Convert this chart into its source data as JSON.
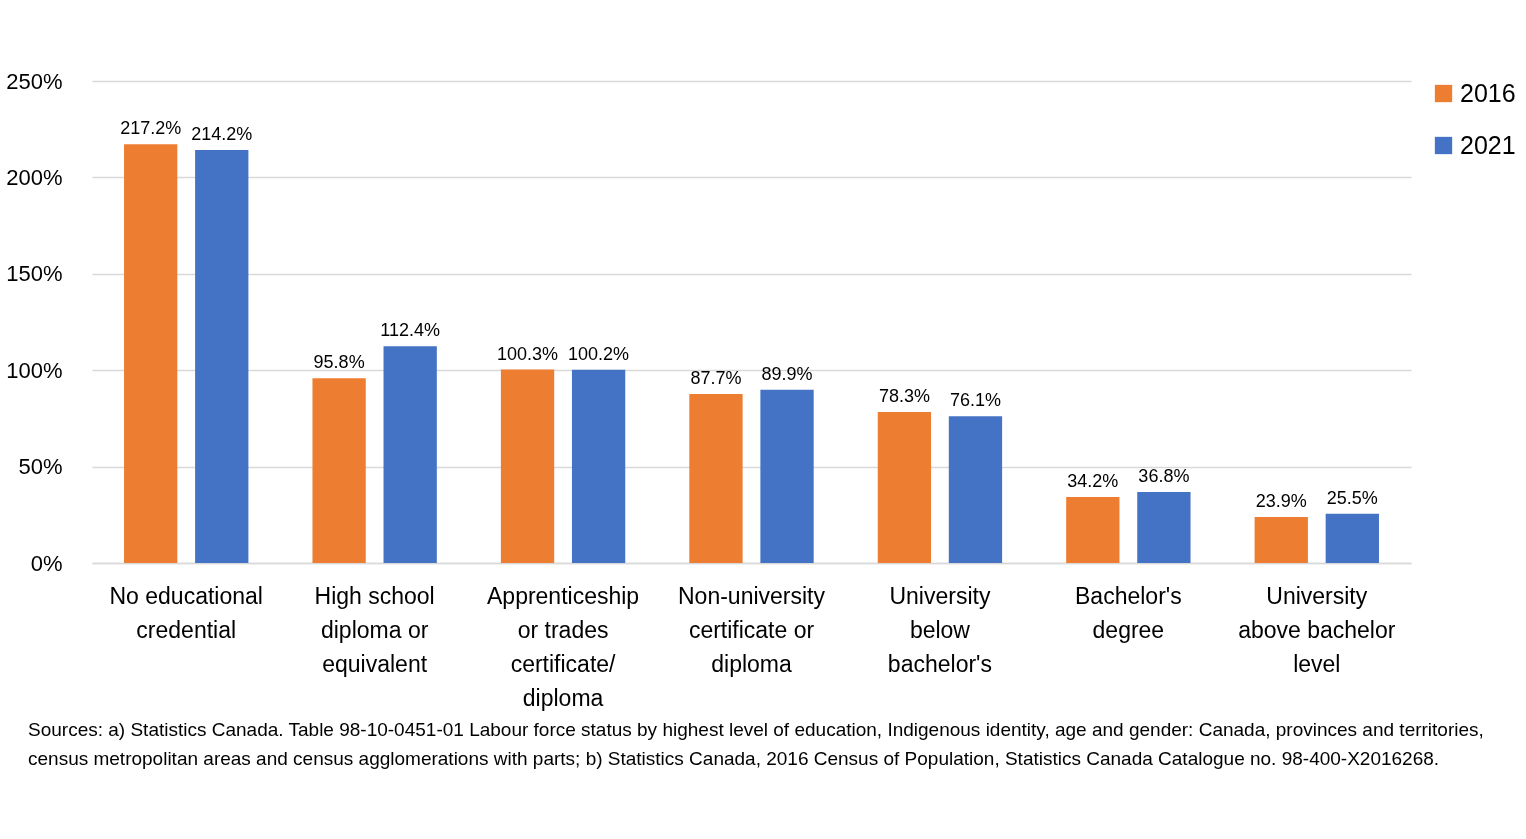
{
  "chart_data": {
    "type": "bar",
    "categories": [
      "No educational credential",
      "High school diploma or equivalent",
      "Apprenticeship or trades certificate/ diploma",
      "Non-university certificate or diploma",
      "University below bachelor's",
      "Bachelor's degree",
      "University above bachelor level"
    ],
    "series": [
      {
        "name": "2016",
        "color": "#ed7d31",
        "values": [
          217.2,
          95.8,
          100.3,
          87.7,
          78.3,
          34.2,
          23.9
        ],
        "value_labels": [
          "217.2%",
          "95.8%",
          "100.3%",
          "87.7%",
          "78.3%",
          "34.2%",
          "23.9%"
        ]
      },
      {
        "name": "2021",
        "color": "#4472c4",
        "values": [
          214.2,
          112.4,
          100.2,
          89.9,
          76.1,
          36.8,
          25.5
        ],
        "value_labels": [
          "214.2%",
          "112.4%",
          "100.2%",
          "89.9%",
          "76.1%",
          "36.8%",
          "25.5%"
        ]
      }
    ],
    "ylim": [
      0,
      250
    ],
    "yticks": [
      {
        "value": 0,
        "label": "0%"
      },
      {
        "value": 50,
        "label": "50%"
      },
      {
        "value": 100,
        "label": "100%"
      },
      {
        "value": 150,
        "label": "150%"
      },
      {
        "value": 200,
        "label": "200%"
      },
      {
        "value": 250,
        "label": "250%"
      }
    ],
    "grid": "y",
    "legend": "right",
    "annotations": [
      "Sources: a) Statistics Canada. Table 98-10-0451-01 Labour force status by highest level of education, Indigenous identity, age and gender: Canada, provinces and territories, census metropolitan areas and census agglomerations with parts; b) Statistics Canada, 2016 Census of Population, Statistics Canada Catalogue no. 98-400-X2016268."
    ]
  }
}
